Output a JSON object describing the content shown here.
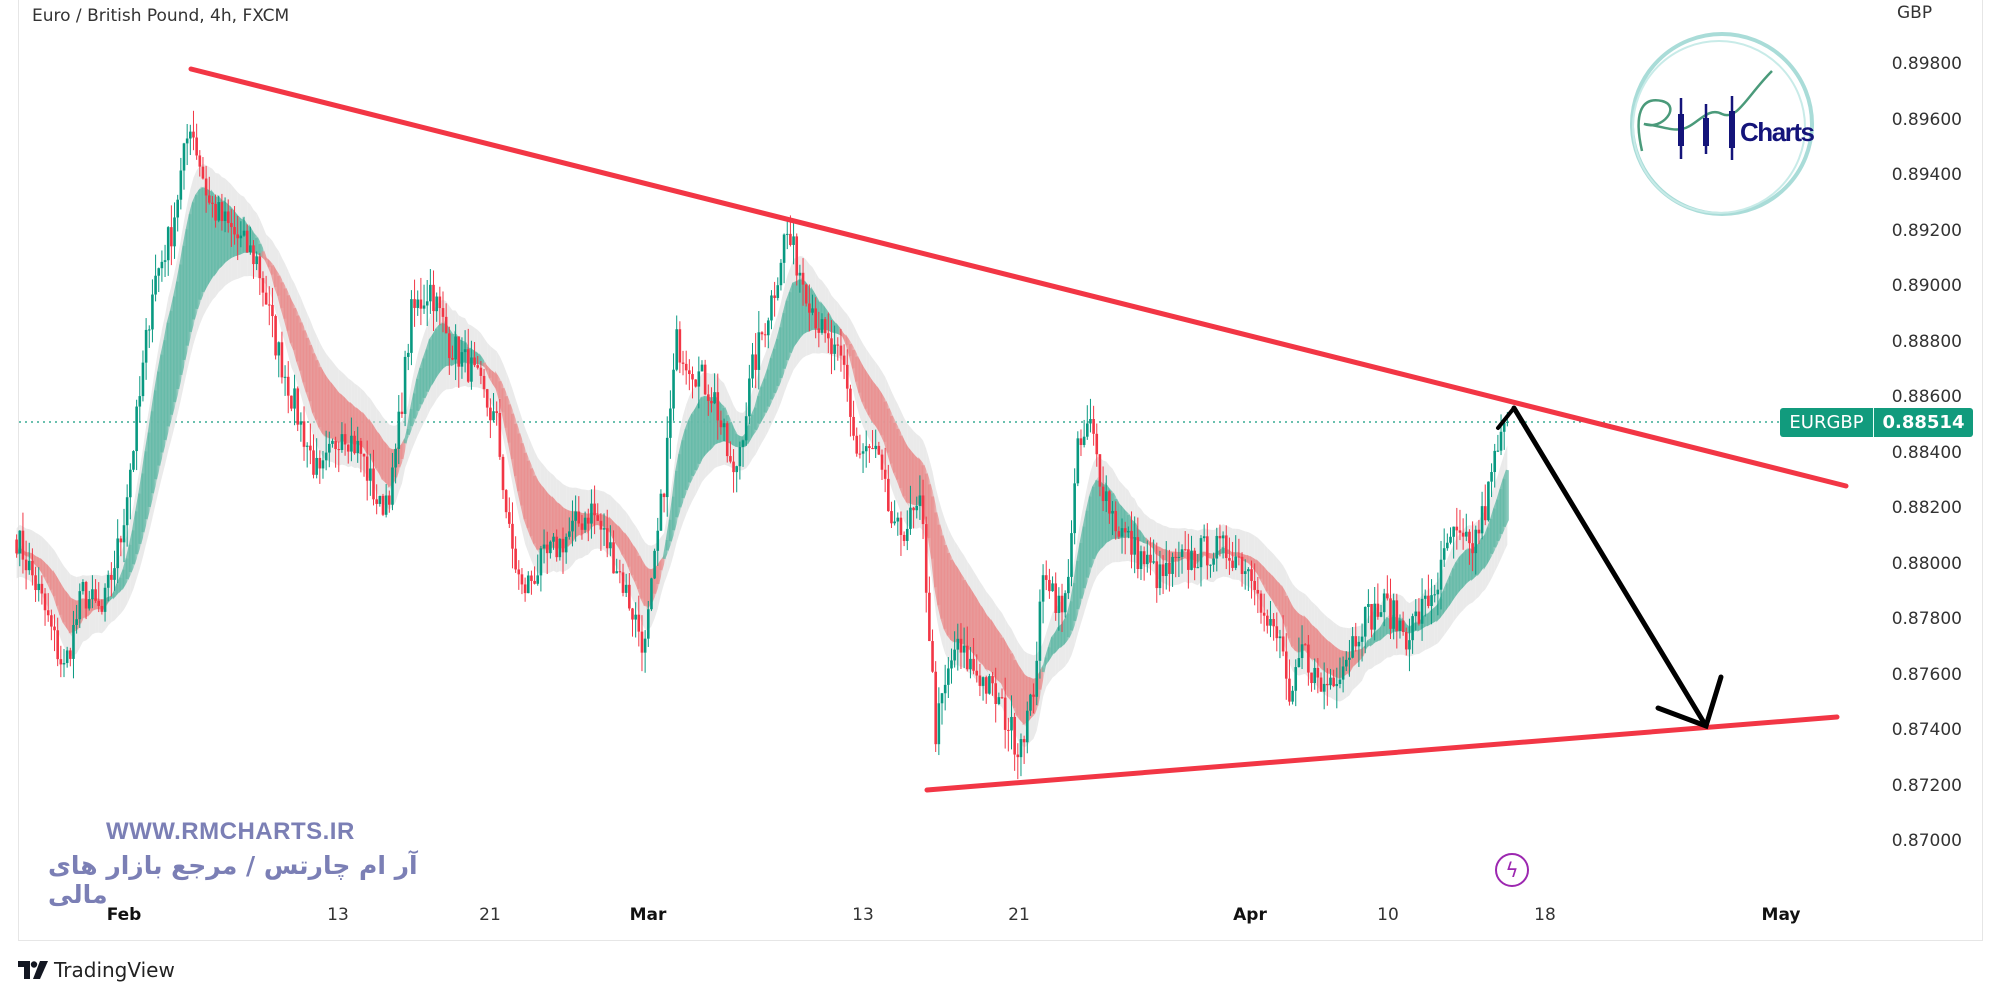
{
  "header": {
    "title": "Euro / British Pound, 4h, FXCM",
    "currency": "GBP"
  },
  "price_tag": {
    "symbol": "EURGBP",
    "price": "0.88514"
  },
  "watermark": {
    "url": "WWW.RMCHARTS.IR",
    "tagline": "آر ام چارتس / مرجع بازار های مالی",
    "logo_text": "RM Charts"
  },
  "footer": {
    "brand": "TradingView"
  },
  "colors": {
    "up": "#089981",
    "down": "#f23645",
    "trendline": "#f23645",
    "arrow": "#000000",
    "price_tag": "#119b7d",
    "watermark": "#7b7fb5"
  },
  "icons": {
    "lightning": "lightning-icon",
    "tradingview": "tradingview-logo-icon"
  },
  "chart_data": {
    "type": "candlestick",
    "title": "Euro / British Pound, 4h, FXCM",
    "ylim": [
      0.869,
      0.899
    ],
    "grid": false,
    "y_ticks": [
      "0.89800",
      "0.89600",
      "0.89400",
      "0.89200",
      "0.89000",
      "0.88800",
      "0.88600",
      "0.88400",
      "0.88200",
      "0.88000",
      "0.87800",
      "0.87600",
      "0.87400",
      "0.87200",
      "0.87000"
    ],
    "x_ticks": [
      {
        "label": "Feb",
        "bold": true
      },
      {
        "label": "13"
      },
      {
        "label": "21"
      },
      {
        "label": "Mar",
        "bold": true
      },
      {
        "label": "13"
      },
      {
        "label": "21"
      },
      {
        "label": "Apr",
        "bold": true
      },
      {
        "label": "10"
      },
      {
        "label": "18"
      },
      {
        "label": "May",
        "bold": true
      }
    ],
    "last_price": 0.88514,
    "close_path": [
      {
        "t": "2023-01-26T08:00",
        "close": 0.881
      },
      {
        "t": "2023-01-27T12:00",
        "close": 0.879
      },
      {
        "t": "2023-01-28T20:00",
        "close": 0.8762
      },
      {
        "t": "2023-01-29T20:00",
        "close": 0.879
      },
      {
        "t": "2023-01-30T20:00",
        "close": 0.8782
      },
      {
        "t": "2023-01-31T20:00",
        "close": 0.881
      },
      {
        "t": "2023-02-01T20:00",
        "close": 0.886
      },
      {
        "t": "2023-02-02T12:00",
        "close": 0.89
      },
      {
        "t": "2023-02-03T12:00",
        "close": 0.892
      },
      {
        "t": "2023-02-04T12:00",
        "close": 0.896
      },
      {
        "t": "2023-02-05T12:00",
        "close": 0.893
      },
      {
        "t": "2023-02-06T16:00",
        "close": 0.892
      },
      {
        "t": "2023-02-08T00:00",
        "close": 0.891
      },
      {
        "t": "2023-02-09T00:00",
        "close": 0.888
      },
      {
        "t": "2023-02-10T08:00",
        "close": 0.885
      },
      {
        "t": "2023-02-11T08:00",
        "close": 0.883
      },
      {
        "t": "2023-02-12T12:00",
        "close": 0.885
      },
      {
        "t": "2023-02-13T12:00",
        "close": 0.884
      },
      {
        "t": "2023-02-14T12:00",
        "close": 0.882
      },
      {
        "t": "2023-02-15T04:00",
        "close": 0.883
      },
      {
        "t": "2023-02-16T04:00",
        "close": 0.889
      },
      {
        "t": "2023-02-17T04:00",
        "close": 0.89
      },
      {
        "t": "2023-02-18T04:00",
        "close": 0.888
      },
      {
        "t": "2023-02-19T08:00",
        "close": 0.887
      },
      {
        "t": "2023-02-20T16:00",
        "close": 0.885
      },
      {
        "t": "2023-02-21T08:00",
        "close": 0.881
      },
      {
        "t": "2023-02-22T00:00",
        "close": 0.879
      },
      {
        "t": "2023-02-23T00:00",
        "close": 0.88
      },
      {
        "t": "2023-02-24T08:00",
        "close": 0.881
      },
      {
        "t": "2023-02-25T16:00",
        "close": 0.882
      },
      {
        "t": "2023-02-27T00:00",
        "close": 0.88
      },
      {
        "t": "2023-02-28T12:00",
        "close": 0.877
      },
      {
        "t": "2023-03-01T12:00",
        "close": 0.883
      },
      {
        "t": "2023-03-02T04:00",
        "close": 0.888
      },
      {
        "t": "2023-03-03T04:00",
        "close": 0.887
      },
      {
        "t": "2023-03-04T04:00",
        "close": 0.886
      },
      {
        "t": "2023-03-05T04:00",
        "close": 0.883
      },
      {
        "t": "2023-03-06T04:00",
        "close": 0.887
      },
      {
        "t": "2023-03-07T08:00",
        "close": 0.89
      },
      {
        "t": "2023-03-07T22:00",
        "close": 0.892
      },
      {
        "t": "2023-03-09T00:00",
        "close": 0.89
      },
      {
        "t": "2023-03-10T00:00",
        "close": 0.888
      },
      {
        "t": "2023-03-11T00:00",
        "close": 0.887
      },
      {
        "t": "2023-03-11T16:00",
        "close": 0.884
      },
      {
        "t": "2023-03-12T16:00",
        "close": 0.884
      },
      {
        "t": "2023-03-13T16:00",
        "close": 0.881
      },
      {
        "t": "2023-03-15T02:00",
        "close": 0.882
      },
      {
        "t": "2023-03-15T20:00",
        "close": 0.874
      },
      {
        "t": "2023-03-16T20:00",
        "close": 0.877
      },
      {
        "t": "2023-03-18T04:00",
        "close": 0.876
      },
      {
        "t": "2023-03-19T04:00",
        "close": 0.875
      },
      {
        "t": "2023-03-20T04:00",
        "close": 0.8735
      },
      {
        "t": "2023-03-20T22:00",
        "close": 0.875
      },
      {
        "t": "2023-03-21T14:00",
        "close": 0.88
      },
      {
        "t": "2023-03-22T14:00",
        "close": 0.878
      },
      {
        "t": "2023-03-23T08:00",
        "close": 0.884
      },
      {
        "t": "2023-03-24T00:00",
        "close": 0.885
      },
      {
        "t": "2023-03-24T14:00",
        "close": 0.883
      },
      {
        "t": "2023-03-25T08:00",
        "close": 0.8815
      },
      {
        "t": "2023-03-26T08:00",
        "close": 0.8805
      },
      {
        "t": "2023-03-27T16:00",
        "close": 0.8795
      },
      {
        "t": "2023-03-28T16:00",
        "close": 0.88
      },
      {
        "t": "2023-03-30T02:00",
        "close": 0.8805
      },
      {
        "t": "2023-03-31T10:00",
        "close": 0.8805
      },
      {
        "t": "2023-04-01T20:00",
        "close": 0.8795
      },
      {
        "t": "2023-04-02T04:00",
        "close": 0.878
      },
      {
        "t": "2023-04-03T04:00",
        "close": 0.877
      },
      {
        "t": "2023-04-03T12:00",
        "close": 0.8745
      },
      {
        "t": "2023-04-04T04:00",
        "close": 0.877
      },
      {
        "t": "2023-04-05T04:00",
        "close": 0.8755
      },
      {
        "t": "2023-04-06T08:00",
        "close": 0.8765
      },
      {
        "t": "2023-04-07T08:00",
        "close": 0.878
      },
      {
        "t": "2023-04-08T14:00",
        "close": 0.8785
      },
      {
        "t": "2023-04-09T16:00",
        "close": 0.8775
      },
      {
        "t": "2023-04-10T16:00",
        "close": 0.8785
      },
      {
        "t": "2023-04-11T10:00",
        "close": 0.8795
      },
      {
        "t": "2023-04-12T00:00",
        "close": 0.881
      },
      {
        "t": "2023-04-13T02:00",
        "close": 0.8805
      },
      {
        "t": "2023-04-13T20:00",
        "close": 0.882
      },
      {
        "t": "2023-04-14T10:00",
        "close": 0.884
      },
      {
        "t": "2023-04-15T02:00",
        "close": 0.88514
      }
    ]
  }
}
